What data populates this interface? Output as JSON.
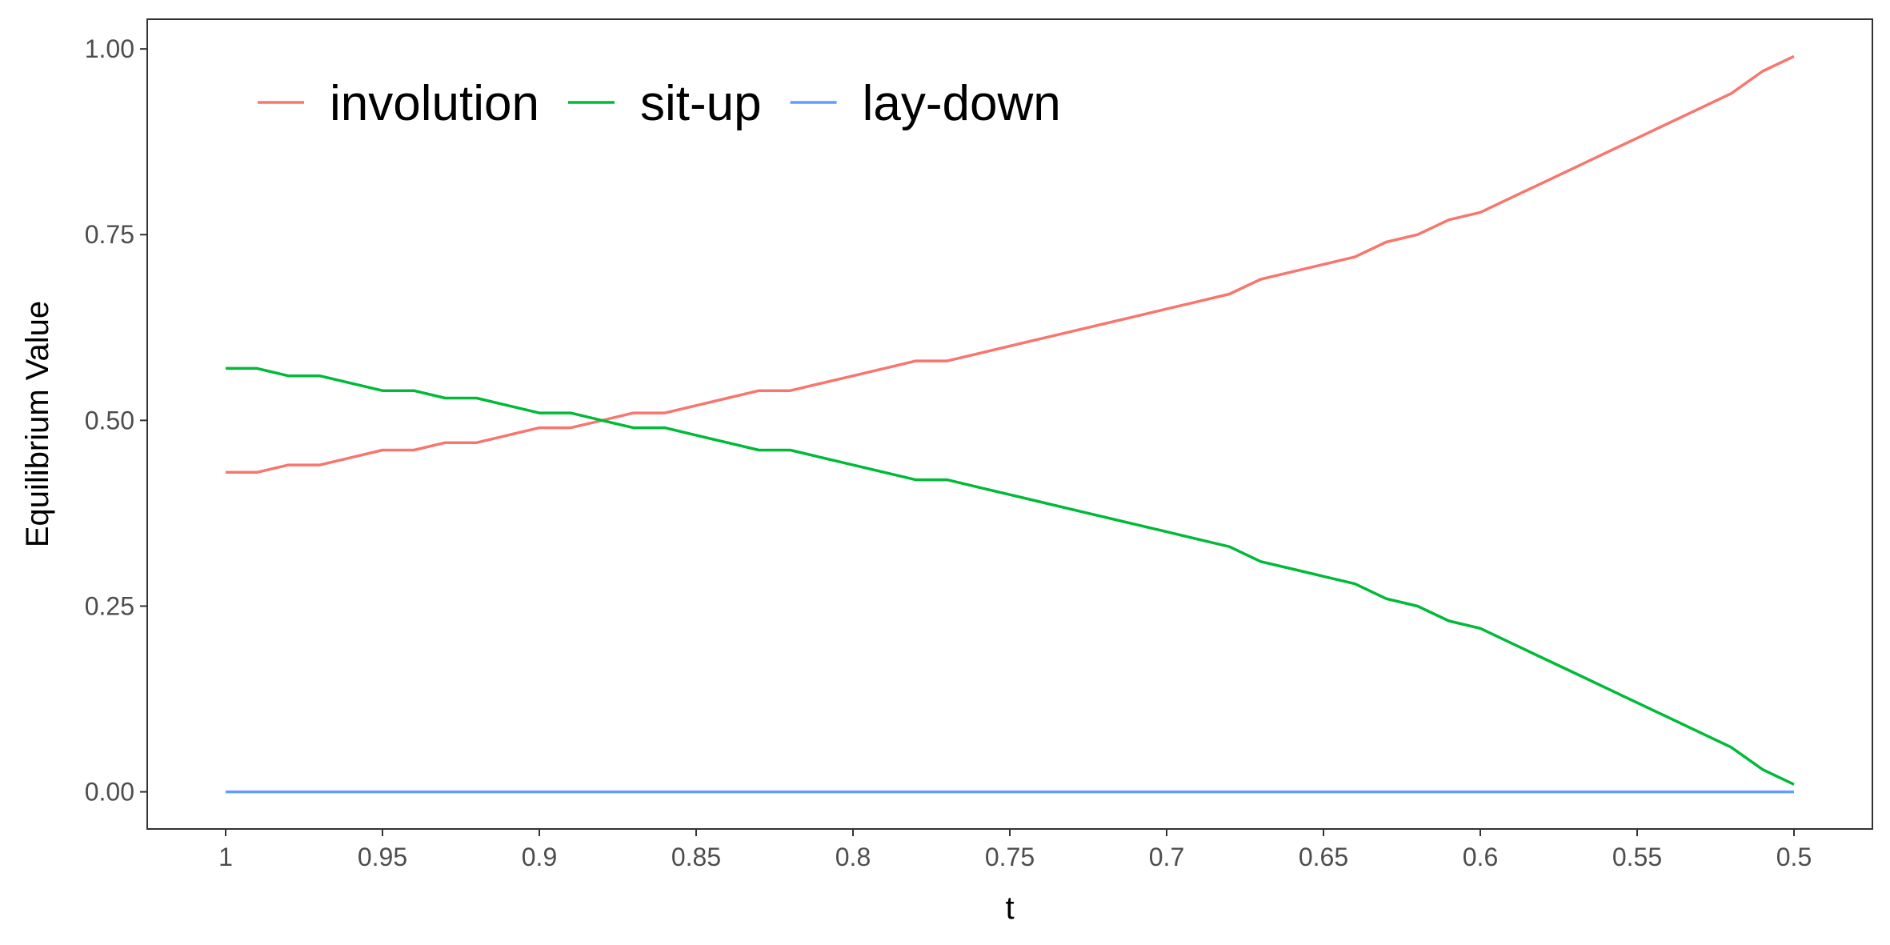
{
  "chart_data": {
    "type": "line",
    "title": "",
    "xlabel": "t",
    "ylabel": "Equilibrium Value",
    "x_reversed": true,
    "xlim": [
      1.025,
      0.475
    ],
    "ylim": [
      -0.05,
      1.04
    ],
    "x_ticks": [
      1,
      0.95,
      0.9,
      0.85,
      0.8,
      0.75,
      0.7,
      0.65,
      0.6,
      0.55,
      0.5
    ],
    "x_tick_labels": [
      "1",
      "0.95",
      "0.9",
      "0.85",
      "0.8",
      "0.75",
      "0.7",
      "0.65",
      "0.6",
      "0.55",
      "0.5"
    ],
    "y_ticks": [
      0,
      0.25,
      0.5,
      0.75,
      1
    ],
    "y_tick_labels": [
      "0.00",
      "0.25",
      "0.50",
      "0.75",
      "1.00"
    ],
    "grid": false,
    "legend_position": "top-left",
    "x": [
      1,
      0.99,
      0.98,
      0.97,
      0.96,
      0.95,
      0.94,
      0.93,
      0.92,
      0.91,
      0.9,
      0.89,
      0.88,
      0.87,
      0.86,
      0.85,
      0.84,
      0.83,
      0.82,
      0.81,
      0.8,
      0.79,
      0.78,
      0.77,
      0.76,
      0.75,
      0.74,
      0.73,
      0.72,
      0.71,
      0.7,
      0.69,
      0.68,
      0.67,
      0.66,
      0.65,
      0.64,
      0.63,
      0.62,
      0.61,
      0.6,
      0.59,
      0.58,
      0.57,
      0.56,
      0.55,
      0.54,
      0.53,
      0.52,
      0.51,
      0.5
    ],
    "series": [
      {
        "name": "involution",
        "color": "#F8766D",
        "values": [
          0.43,
          0.43,
          0.44,
          0.44,
          0.45,
          0.46,
          0.46,
          0.47,
          0.47,
          0.48,
          0.49,
          0.49,
          0.5,
          0.51,
          0.51,
          0.52,
          0.53,
          0.54,
          0.54,
          0.55,
          0.56,
          0.57,
          0.58,
          0.58,
          0.59,
          0.6,
          0.61,
          0.62,
          0.63,
          0.64,
          0.65,
          0.66,
          0.67,
          0.69,
          0.7,
          0.71,
          0.72,
          0.74,
          0.75,
          0.77,
          0.78,
          0.8,
          0.82,
          0.84,
          0.86,
          0.88,
          0.9,
          0.92,
          0.94,
          0.97,
          0.99
        ]
      },
      {
        "name": "sit-up",
        "color": "#00BA38",
        "values": [
          0.57,
          0.57,
          0.56,
          0.56,
          0.55,
          0.54,
          0.54,
          0.53,
          0.53,
          0.52,
          0.51,
          0.51,
          0.5,
          0.49,
          0.49,
          0.48,
          0.47,
          0.46,
          0.46,
          0.45,
          0.44,
          0.43,
          0.42,
          0.42,
          0.41,
          0.4,
          0.39,
          0.38,
          0.37,
          0.36,
          0.35,
          0.34,
          0.33,
          0.31,
          0.3,
          0.29,
          0.28,
          0.26,
          0.25,
          0.23,
          0.22,
          0.2,
          0.18,
          0.16,
          0.14,
          0.12,
          0.1,
          0.08,
          0.06,
          0.03,
          0.01
        ]
      },
      {
        "name": "lay-down",
        "color": "#619CFF",
        "values": [
          0,
          0,
          0,
          0,
          0,
          0,
          0,
          0,
          0,
          0,
          0,
          0,
          0,
          0,
          0,
          0,
          0,
          0,
          0,
          0,
          0,
          0,
          0,
          0,
          0,
          0,
          0,
          0,
          0,
          0,
          0,
          0,
          0,
          0,
          0,
          0,
          0,
          0,
          0,
          0,
          0,
          0,
          0,
          0,
          0,
          0,
          0,
          0,
          0,
          0,
          0
        ]
      }
    ]
  }
}
